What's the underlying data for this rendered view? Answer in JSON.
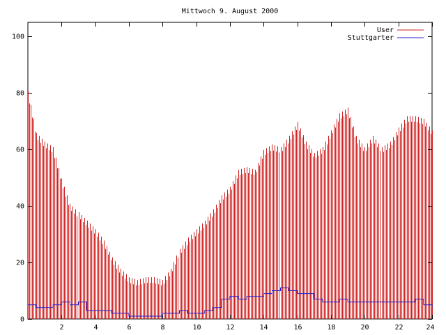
{
  "chart_data": {
    "type": "bar",
    "title": "Mittwoch 9. August 2000",
    "xlabel": "",
    "ylabel": "",
    "xlim": [
      0,
      24
    ],
    "ylim": [
      0,
      105
    ],
    "xticks": [
      2,
      4,
      6,
      8,
      10,
      12,
      14,
      16,
      18,
      20,
      22,
      24
    ],
    "yticks": [
      0,
      20,
      40,
      60,
      80,
      100
    ],
    "grid": false,
    "legend_position": "top-right",
    "series": [
      {
        "name": "User",
        "kind": "impulses",
        "color": "#d02020",
        "x": [
          0.0,
          0.5,
          1.0,
          1.5,
          2.0,
          2.5,
          3.0,
          3.5,
          4.0,
          4.5,
          5.0,
          5.5,
          6.0,
          6.5,
          7.0,
          7.5,
          8.0,
          8.5,
          9.0,
          9.5,
          10.0,
          10.5,
          11.0,
          11.5,
          12.0,
          12.5,
          13.0,
          13.5,
          14.0,
          14.5,
          15.0,
          15.5,
          16.0,
          16.5,
          17.0,
          17.5,
          18.0,
          18.5,
          19.0,
          19.5,
          20.0,
          20.5,
          21.0,
          21.5,
          22.0,
          22.5,
          23.0,
          23.5,
          24.0
        ],
        "values": [
          80,
          65,
          62,
          60,
          49,
          40,
          37,
          34,
          31,
          27,
          21,
          17,
          14,
          13,
          14,
          14,
          13,
          17,
          24,
          28,
          31,
          34,
          38,
          43,
          46,
          52,
          53,
          52,
          59,
          61,
          60,
          64,
          69,
          62,
          58,
          60,
          66,
          72,
          74,
          64,
          60,
          64,
          60,
          62,
          67,
          71,
          71,
          70,
          66
        ]
      },
      {
        "name": "Stuttgarter",
        "kind": "line",
        "color": "#2020d0",
        "x": [
          0.0,
          0.5,
          1.0,
          1.5,
          2.0,
          2.5,
          3.0,
          3.5,
          4.0,
          4.5,
          5.0,
          5.5,
          6.0,
          6.5,
          7.0,
          7.5,
          8.0,
          8.5,
          9.0,
          9.5,
          10.0,
          10.5,
          11.0,
          11.5,
          12.0,
          12.5,
          13.0,
          13.5,
          14.0,
          14.5,
          15.0,
          15.5,
          16.0,
          16.5,
          17.0,
          17.5,
          18.0,
          18.5,
          19.0,
          19.5,
          20.0,
          20.5,
          21.0,
          21.5,
          22.0,
          22.5,
          23.0,
          23.5,
          24.0
        ],
        "values": [
          5,
          4,
          4,
          5,
          6,
          5,
          6,
          3,
          3,
          3,
          2,
          2,
          1,
          1,
          1,
          1,
          2,
          2,
          3,
          2,
          2,
          3,
          4,
          7,
          8,
          7,
          8,
          8,
          9,
          10,
          11,
          10,
          9,
          9,
          7,
          6,
          6,
          7,
          6,
          6,
          6,
          6,
          6,
          6,
          6,
          6,
          7,
          5,
          4
        ]
      }
    ]
  }
}
